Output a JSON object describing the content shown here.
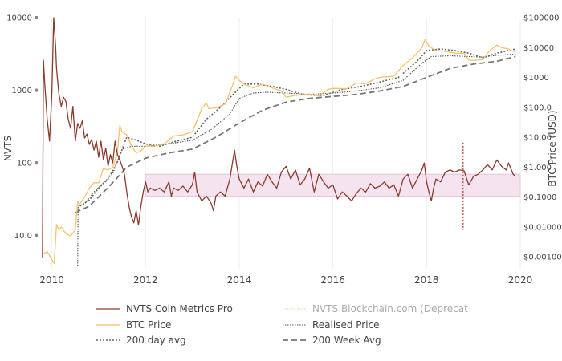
{
  "chart_data": {
    "type": "line",
    "y_left": {
      "label": "NVTS",
      "scale": "log",
      "range": [
        3.5,
        10000
      ],
      "ticks": [
        "10000",
        "1000",
        "100",
        "10.0"
      ]
    },
    "y_right": {
      "label": "BTC Price (USD)",
      "scale": "log",
      "range": [
        0.0004,
        100000
      ],
      "ticks": [
        "$100000",
        "$10000",
        "$1000",
        "$100.0",
        "$10.00",
        "$1.000",
        "$0.1000",
        "$0.01000",
        "$0.001000"
      ]
    },
    "x": {
      "range": [
        2009.75,
        2020.0
      ],
      "ticks": [
        "2010",
        "2012",
        "2014",
        "2016",
        "2018",
        "2020"
      ],
      "grid": true
    },
    "band": {
      "axis": "left",
      "y_from": 35,
      "y_to": 70,
      "x_from": 2012.0,
      "x_to": 2020.0
    },
    "marker": {
      "x": 2018.78,
      "y_from_left": 12,
      "y_to_left": 190
    },
    "legend_position": "bottom",
    "series": [
      {
        "name": "NVTS Coin Metrics Pro",
        "axis": "left",
        "color": "#8b3a2b",
        "style": "solid",
        "points": [
          [
            2009.8,
            5
          ],
          [
            2009.82,
            2600
          ],
          [
            2009.85,
            1200
          ],
          [
            2009.9,
            400
          ],
          [
            2009.95,
            200
          ],
          [
            2010.0,
            900
          ],
          [
            2010.04,
            10000
          ],
          [
            2010.08,
            4000
          ],
          [
            2010.1,
            2000
          ],
          [
            2010.15,
            900
          ],
          [
            2010.2,
            600
          ],
          [
            2010.25,
            800
          ],
          [
            2010.3,
            700
          ],
          [
            2010.35,
            400
          ],
          [
            2010.4,
            300
          ],
          [
            2010.45,
            600
          ],
          [
            2010.5,
            200
          ],
          [
            2010.55,
            350
          ],
          [
            2010.6,
            300
          ],
          [
            2010.65,
            380
          ],
          [
            2010.7,
            220
          ],
          [
            2010.75,
            250
          ],
          [
            2010.8,
            180
          ],
          [
            2010.85,
            210
          ],
          [
            2010.9,
            150
          ],
          [
            2010.95,
            200
          ],
          [
            2011.0,
            120
          ],
          [
            2011.05,
            200
          ],
          [
            2011.1,
            110
          ],
          [
            2011.15,
            160
          ],
          [
            2011.2,
            90
          ],
          [
            2011.25,
            130
          ],
          [
            2011.3,
            100
          ],
          [
            2011.35,
            200
          ],
          [
            2011.4,
            130
          ],
          [
            2011.45,
            110
          ],
          [
            2011.5,
            90
          ],
          [
            2011.55,
            70
          ],
          [
            2011.6,
            40
          ],
          [
            2011.65,
            25
          ],
          [
            2011.7,
            18
          ],
          [
            2011.75,
            15
          ],
          [
            2011.8,
            22
          ],
          [
            2011.85,
            14
          ],
          [
            2011.9,
            25
          ],
          [
            2011.95,
            40
          ],
          [
            2012.0,
            55
          ],
          [
            2012.05,
            40
          ],
          [
            2012.1,
            45
          ],
          [
            2012.2,
            42
          ],
          [
            2012.3,
            45
          ],
          [
            2012.4,
            40
          ],
          [
            2012.5,
            55
          ],
          [
            2012.55,
            35
          ],
          [
            2012.6,
            45
          ],
          [
            2012.7,
            42
          ],
          [
            2012.8,
            48
          ],
          [
            2012.9,
            40
          ],
          [
            2013.0,
            50
          ],
          [
            2013.05,
            75
          ],
          [
            2013.1,
            40
          ],
          [
            2013.2,
            30
          ],
          [
            2013.3,
            35
          ],
          [
            2013.4,
            28
          ],
          [
            2013.45,
            22
          ],
          [
            2013.5,
            35
          ],
          [
            2013.6,
            40
          ],
          [
            2013.7,
            35
          ],
          [
            2013.8,
            60
          ],
          [
            2013.9,
            150
          ],
          [
            2013.95,
            90
          ],
          [
            2014.0,
            60
          ],
          [
            2014.1,
            45
          ],
          [
            2014.2,
            60
          ],
          [
            2014.3,
            40
          ],
          [
            2014.4,
            55
          ],
          [
            2014.5,
            48
          ],
          [
            2014.6,
            70
          ],
          [
            2014.7,
            55
          ],
          [
            2014.8,
            45
          ],
          [
            2014.9,
            75
          ],
          [
            2015.0,
            90
          ],
          [
            2015.1,
            60
          ],
          [
            2015.2,
            80
          ],
          [
            2015.3,
            50
          ],
          [
            2015.4,
            60
          ],
          [
            2015.5,
            85
          ],
          [
            2015.6,
            40
          ],
          [
            2015.7,
            70
          ],
          [
            2015.8,
            55
          ],
          [
            2015.9,
            45
          ],
          [
            2016.0,
            50
          ],
          [
            2016.1,
            32
          ],
          [
            2016.2,
            40
          ],
          [
            2016.3,
            35
          ],
          [
            2016.4,
            30
          ],
          [
            2016.5,
            38
          ],
          [
            2016.6,
            45
          ],
          [
            2016.7,
            40
          ],
          [
            2016.8,
            52
          ],
          [
            2016.9,
            45
          ],
          [
            2017.0,
            48
          ],
          [
            2017.1,
            55
          ],
          [
            2017.2,
            45
          ],
          [
            2017.3,
            50
          ],
          [
            2017.4,
            35
          ],
          [
            2017.5,
            60
          ],
          [
            2017.6,
            70
          ],
          [
            2017.7,
            45
          ],
          [
            2017.8,
            60
          ],
          [
            2017.9,
            80
          ],
          [
            2017.95,
            100
          ],
          [
            2018.0,
            55
          ],
          [
            2018.05,
            40
          ],
          [
            2018.1,
            30
          ],
          [
            2018.15,
            45
          ],
          [
            2018.2,
            60
          ],
          [
            2018.3,
            55
          ],
          [
            2018.4,
            75
          ],
          [
            2018.5,
            80
          ],
          [
            2018.6,
            75
          ],
          [
            2018.7,
            80
          ],
          [
            2018.8,
            78
          ],
          [
            2018.9,
            50
          ],
          [
            2019.0,
            65
          ],
          [
            2019.1,
            70
          ],
          [
            2019.2,
            80
          ],
          [
            2019.3,
            95
          ],
          [
            2019.4,
            80
          ],
          [
            2019.5,
            110
          ],
          [
            2019.6,
            90
          ],
          [
            2019.7,
            80
          ],
          [
            2019.75,
            100
          ],
          [
            2019.85,
            70
          ],
          [
            2019.9,
            65
          ]
        ]
      },
      {
        "name": "NVTS Blockchain.com (Deprecat",
        "axis": "left",
        "color": "#f2c99a",
        "style": "dotted",
        "muted": true,
        "points": []
      },
      {
        "name": "BTC Price",
        "axis": "right",
        "color": "#f5c26b",
        "style": "solid",
        "points": [
          [
            2009.8,
            0.0012
          ],
          [
            2009.9,
            0.0015
          ],
          [
            2010.0,
            0.0008
          ],
          [
            2010.05,
            0.0006
          ],
          [
            2010.1,
            0.012
          ],
          [
            2010.15,
            0.008
          ],
          [
            2010.2,
            0.01
          ],
          [
            2010.3,
            0.006
          ],
          [
            2010.4,
            0.005
          ],
          [
            2010.5,
            0.008
          ],
          [
            2010.55,
            0.07
          ],
          [
            2010.6,
            0.06
          ],
          [
            2010.7,
            0.1
          ],
          [
            2010.8,
            0.2
          ],
          [
            2010.9,
            0.3
          ],
          [
            2011.0,
            0.3
          ],
          [
            2011.1,
            0.9
          ],
          [
            2011.2,
            0.8
          ],
          [
            2011.3,
            1.0
          ],
          [
            2011.4,
            3
          ],
          [
            2011.45,
            25
          ],
          [
            2011.5,
            15
          ],
          [
            2011.6,
            12
          ],
          [
            2011.7,
            5
          ],
          [
            2011.8,
            3
          ],
          [
            2011.9,
            3.5
          ],
          [
            2012.0,
            5
          ],
          [
            2012.2,
            5
          ],
          [
            2012.4,
            6
          ],
          [
            2012.6,
            11
          ],
          [
            2012.8,
            12
          ],
          [
            2013.0,
            15
          ],
          [
            2013.2,
            90
          ],
          [
            2013.3,
            140
          ],
          [
            2013.35,
            90
          ],
          [
            2013.5,
            95
          ],
          [
            2013.7,
            130
          ],
          [
            2013.85,
            500
          ],
          [
            2013.92,
            1100
          ],
          [
            2014.0,
            800
          ],
          [
            2014.1,
            600
          ],
          [
            2014.3,
            450
          ],
          [
            2014.5,
            600
          ],
          [
            2014.7,
            450
          ],
          [
            2014.9,
            350
          ],
          [
            2015.0,
            220
          ],
          [
            2015.2,
            250
          ],
          [
            2015.5,
            280
          ],
          [
            2015.7,
            240
          ],
          [
            2015.9,
            400
          ],
          [
            2016.0,
            430
          ],
          [
            2016.3,
            420
          ],
          [
            2016.5,
            650
          ],
          [
            2016.7,
            620
          ],
          [
            2016.9,
            900
          ],
          [
            2017.0,
            1000
          ],
          [
            2017.3,
            1100
          ],
          [
            2017.5,
            2500
          ],
          [
            2017.7,
            4500
          ],
          [
            2017.9,
            10000
          ],
          [
            2017.97,
            19000
          ],
          [
            2018.05,
            11000
          ],
          [
            2018.2,
            8000
          ],
          [
            2018.4,
            7500
          ],
          [
            2018.6,
            6500
          ],
          [
            2018.8,
            6400
          ],
          [
            2018.9,
            3800
          ],
          [
            2019.0,
            3700
          ],
          [
            2019.2,
            4000
          ],
          [
            2019.35,
            8000
          ],
          [
            2019.5,
            12000
          ],
          [
            2019.6,
            10000
          ],
          [
            2019.75,
            9000
          ],
          [
            2019.85,
            7500
          ],
          [
            2019.9,
            7300
          ]
        ]
      },
      {
        "name": "Realised Price",
        "axis": "right",
        "color": "#555555",
        "style": "dotted",
        "points": [
          [
            2010.55,
            0.0005
          ],
          [
            2010.56,
            0.05
          ],
          [
            2010.7,
            0.06
          ],
          [
            2010.9,
            0.15
          ],
          [
            2011.1,
            0.3
          ],
          [
            2011.3,
            0.6
          ],
          [
            2011.5,
            4
          ],
          [
            2011.7,
            5
          ],
          [
            2012.0,
            5
          ],
          [
            2012.5,
            6
          ],
          [
            2013.0,
            8
          ],
          [
            2013.4,
            18
          ],
          [
            2013.8,
            60
          ],
          [
            2014.0,
            200
          ],
          [
            2014.3,
            300
          ],
          [
            2014.6,
            320
          ],
          [
            2015.0,
            300
          ],
          [
            2015.5,
            270
          ],
          [
            2016.0,
            300
          ],
          [
            2016.5,
            350
          ],
          [
            2017.0,
            450
          ],
          [
            2017.5,
            800
          ],
          [
            2017.9,
            3000
          ],
          [
            2018.1,
            5000
          ],
          [
            2018.5,
            5300
          ],
          [
            2018.9,
            5000
          ],
          [
            2019.2,
            4800
          ],
          [
            2019.5,
            5500
          ],
          [
            2019.9,
            6000
          ]
        ]
      },
      {
        "name": "200 day avg",
        "axis": "right",
        "color": "#666666",
        "style": "dotted-heavy",
        "points": [
          [
            2010.6,
            0.05
          ],
          [
            2010.8,
            0.08
          ],
          [
            2011.0,
            0.2
          ],
          [
            2011.2,
            0.4
          ],
          [
            2011.4,
            1.5
          ],
          [
            2011.6,
            10
          ],
          [
            2011.8,
            8
          ],
          [
            2012.0,
            6
          ],
          [
            2012.3,
            5
          ],
          [
            2012.6,
            7
          ],
          [
            2013.0,
            10
          ],
          [
            2013.3,
            40
          ],
          [
            2013.6,
            100
          ],
          [
            2013.9,
            300
          ],
          [
            2014.1,
            600
          ],
          [
            2014.4,
            600
          ],
          [
            2014.7,
            500
          ],
          [
            2015.0,
            400
          ],
          [
            2015.4,
            260
          ],
          [
            2015.8,
            250
          ],
          [
            2016.2,
            400
          ],
          [
            2016.6,
            500
          ],
          [
            2017.0,
            700
          ],
          [
            2017.4,
            1000
          ],
          [
            2017.8,
            3500
          ],
          [
            2018.0,
            8000
          ],
          [
            2018.3,
            9000
          ],
          [
            2018.6,
            8000
          ],
          [
            2018.9,
            6500
          ],
          [
            2019.2,
            4500
          ],
          [
            2019.5,
            6500
          ],
          [
            2019.9,
            9000
          ]
        ]
      },
      {
        "name": "200 Week Avg",
        "axis": "right",
        "color": "#777777",
        "style": "dashed",
        "points": [
          [
            2010.5,
            0.03
          ],
          [
            2010.8,
            0.05
          ],
          [
            2011.0,
            0.1
          ],
          [
            2011.3,
            0.3
          ],
          [
            2011.6,
            1.0
          ],
          [
            2012.0,
            2
          ],
          [
            2012.5,
            3
          ],
          [
            2013.0,
            4
          ],
          [
            2013.5,
            10
          ],
          [
            2014.0,
            30
          ],
          [
            2014.5,
            80
          ],
          [
            2015.0,
            150
          ],
          [
            2015.5,
            200
          ],
          [
            2016.0,
            230
          ],
          [
            2016.5,
            270
          ],
          [
            2017.0,
            350
          ],
          [
            2017.5,
            500
          ],
          [
            2018.0,
            1000
          ],
          [
            2018.5,
            2000
          ],
          [
            2019.0,
            2800
          ],
          [
            2019.5,
            3500
          ],
          [
            2019.9,
            5000
          ]
        ]
      }
    ]
  }
}
